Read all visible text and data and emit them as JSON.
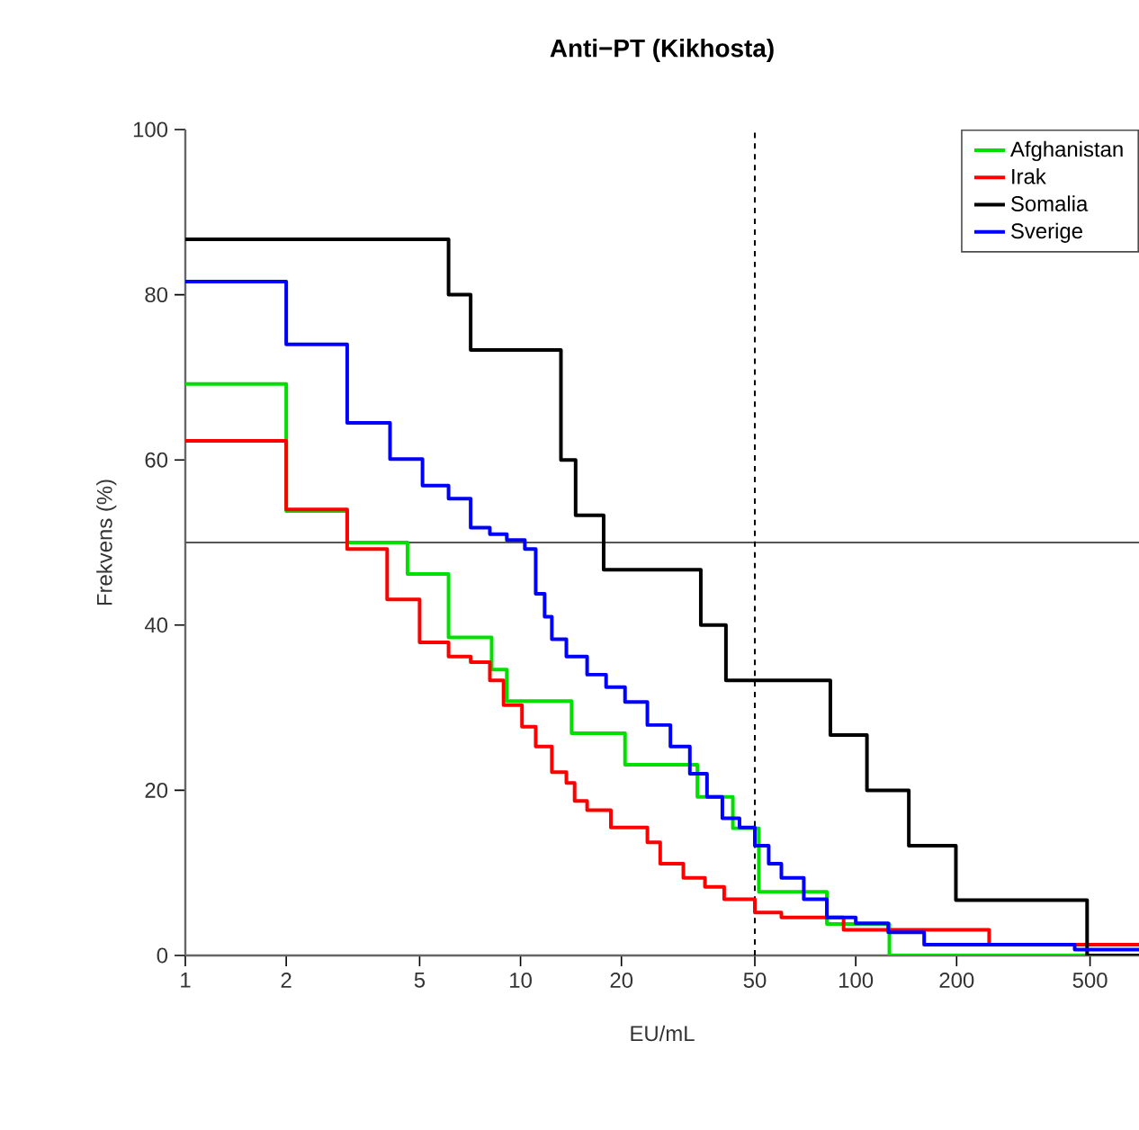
{
  "chart_data": {
    "type": "step",
    "title": "Anti−PT (Kikhosta)",
    "xlabel": "EU/mL",
    "ylabel": "Frekvens (%)",
    "log": "x",
    "xlim": [
      1,
      700
    ],
    "ylim": [
      0,
      100
    ],
    "xticks": [
      1,
      2,
      5,
      10,
      20,
      50,
      100,
      200,
      500
    ],
    "yticks": [
      0,
      20,
      40,
      60,
      80,
      100
    ],
    "legend": "top right",
    "grid": false,
    "series": [
      {
        "name": "Afghanistan",
        "color": "#00e000",
        "x": [
          1,
          2,
          3.04,
          4.6,
          6.1,
          8.2,
          9.1,
          14.2,
          20.5,
          33.7,
          43,
          51.4,
          82,
          126,
          700
        ],
        "values": [
          69.2,
          53.8,
          50,
          46.2,
          38.5,
          34.6,
          30.8,
          26.9,
          23.1,
          19.2,
          15.4,
          7.7,
          3.8,
          0,
          0
        ]
      },
      {
        "name": "Irak",
        "color": "#ff0000",
        "x": [
          1,
          2,
          3.04,
          4.0,
          5.0,
          6.1,
          7.1,
          8.1,
          8.9,
          10.1,
          11.1,
          12.4,
          13.7,
          14.5,
          15.8,
          18.6,
          23.9,
          26.1,
          30.6,
          35.5,
          40.5,
          50,
          60,
          92,
          250,
          700
        ],
        "values": [
          62.3,
          54,
          49.2,
          43.1,
          37.9,
          36.2,
          35.5,
          33.3,
          30.3,
          27.7,
          25.3,
          22.2,
          20.9,
          18.7,
          17.6,
          15.5,
          13.7,
          11.1,
          9.4,
          8.3,
          6.8,
          5.2,
          4.6,
          3.1,
          1.3,
          1.3
        ]
      },
      {
        "name": "Somalia",
        "color": "#000000",
        "x": [
          1,
          6.1,
          7.1,
          13.2,
          14.6,
          17.7,
          34.5,
          41,
          84,
          108,
          144,
          199,
          490,
          700
        ],
        "values": [
          86.7,
          80,
          73.3,
          60,
          53.3,
          46.7,
          40,
          33.3,
          26.7,
          20,
          13.3,
          6.7,
          0,
          0
        ]
      },
      {
        "name": "Sverige",
        "color": "#0000ff",
        "x": [
          1,
          2,
          3.04,
          4.08,
          5.1,
          6.1,
          7.1,
          8.1,
          9.1,
          10.3,
          11.1,
          11.8,
          12.4,
          13.7,
          15.8,
          18,
          20.5,
          23.9,
          28,
          32,
          36,
          40,
          45,
          50,
          55,
          60,
          70,
          82,
          100,
          125,
          160,
          250,
          450,
          700
        ],
        "values": [
          81.6,
          74,
          64.5,
          60.1,
          56.9,
          55.3,
          51.8,
          51,
          50.3,
          49.2,
          43.8,
          41,
          38.3,
          36.2,
          34,
          32.5,
          30.7,
          27.9,
          25.3,
          22,
          19.2,
          16.6,
          15.5,
          13.3,
          11.1,
          9.4,
          6.8,
          4.6,
          3.9,
          2.8,
          1.3,
          1.3,
          0.7,
          0.7
        ]
      }
    ],
    "ref_lines": [
      {
        "axis": "y",
        "value": 50,
        "color": "#555555",
        "line_style": "solid"
      },
      {
        "axis": "x",
        "value": 50,
        "color": "#000000",
        "line_style": "dashed"
      }
    ]
  }
}
